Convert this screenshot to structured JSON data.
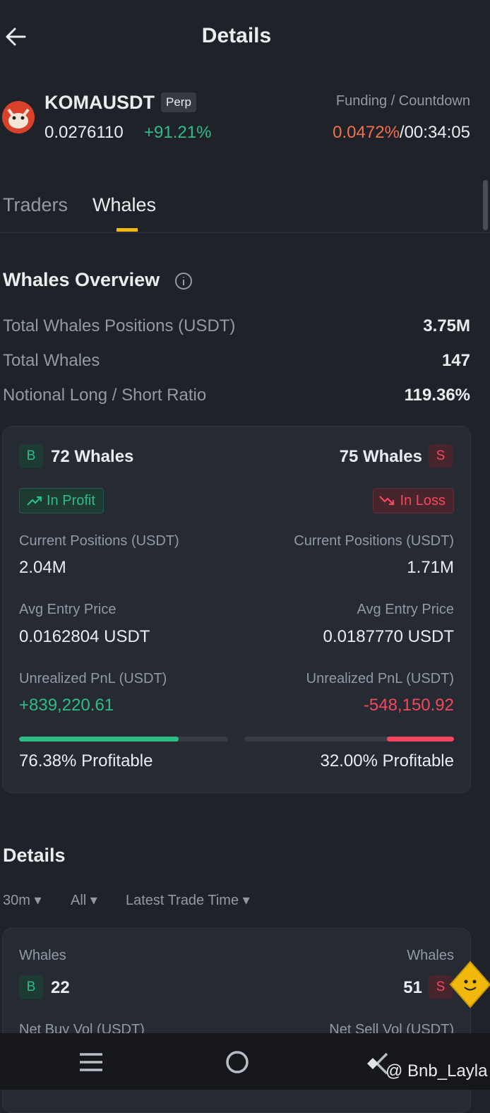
{
  "header": {
    "title": "Details"
  },
  "symbol": {
    "name": "KOMAUSDT",
    "tag": "Perp",
    "price": "0.0276110",
    "change": "+91.21%",
    "funding_label": "Funding / Countdown",
    "funding_rate": "0.0472%",
    "separator": "/",
    "countdown": "00:34:05"
  },
  "tabs": [
    "Traders",
    "Whales"
  ],
  "overview": {
    "title": "Whales Overview",
    "rows": [
      [
        "Total Whales Positions (USDT)",
        "3.75M"
      ],
      [
        "Total Whales",
        "147"
      ],
      [
        "Notional Long / Short Ratio",
        "119.36%"
      ]
    ]
  },
  "long": {
    "badge": "B",
    "whales": "72 Whales",
    "status": "In Profit",
    "positions_label": "Current Positions (USDT)",
    "positions": "2.04M",
    "entry_label": "Avg Entry Price",
    "entry": "0.0162804 USDT",
    "pnl_label": "Unrealized PnL (USDT)",
    "pnl": "+839,220.61",
    "profitable": {
      "value": 76.38,
      "label": "76.38% Profitable"
    }
  },
  "short": {
    "badge": "S",
    "whales": "75 Whales",
    "status": "In Loss",
    "positions_label": "Current Positions (USDT)",
    "positions": "1.71M",
    "entry_label": "Avg Entry Price",
    "entry": "0.0187770 USDT",
    "pnl_label": "Unrealized PnL (USDT)",
    "pnl": "-548,150.92",
    "profitable": {
      "value": 32,
      "label": "32.00% Profitable"
    }
  },
  "details": {
    "title": "Details",
    "filters": [
      "30m",
      "All",
      "Latest Trade Time"
    ],
    "long": {
      "label": "Whales",
      "badge": "B",
      "count": "22",
      "vol_label": "Net Buy Vol (USDT)"
    },
    "short": {
      "label": "Whales",
      "badge": "S",
      "count": "51",
      "vol_label": "Net Sell Vol (USDT)"
    }
  },
  "watermark": "@ Bnb_Layla"
}
